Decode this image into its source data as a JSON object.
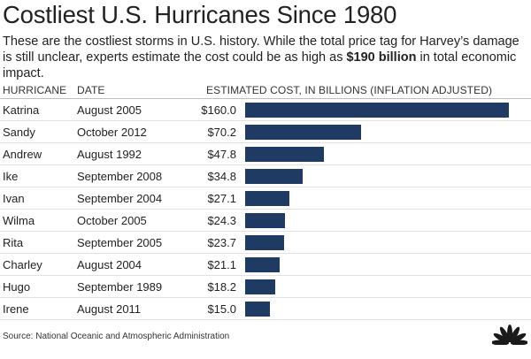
{
  "title": "Costliest U.S. Hurricanes Since 1980",
  "subtitle": {
    "text_before": "These are the costliest storms in U.S. history. While the total price tag for Harvey’s damage is still unclear, experts estimate the cost could be as high as ",
    "highlight": "$190 billion",
    "text_after": " in total economic impact."
  },
  "columns": {
    "hurricane": "HURRICANE",
    "date": "DATE",
    "cost": "ESTIMATED COST, IN BILLIONS (INFLATION ADJUSTED)"
  },
  "rows": [
    {
      "name": "Katrina",
      "date": "August 2005",
      "value_label": "$160.0"
    },
    {
      "name": "Sandy",
      "date": "October 2012",
      "value_label": "$70.2"
    },
    {
      "name": "Andrew",
      "date": "August 1992",
      "value_label": "$47.8"
    },
    {
      "name": "Ike",
      "date": "September 2008",
      "value_label": "$34.8"
    },
    {
      "name": "Ivan",
      "date": "September 2004",
      "value_label": "$27.1"
    },
    {
      "name": "Wilma",
      "date": "October 2005",
      "value_label": "$24.3"
    },
    {
      "name": "Rita",
      "date": "September 2005",
      "value_label": "$23.7"
    },
    {
      "name": "Charley",
      "date": "August 2004",
      "value_label": "$21.1"
    },
    {
      "name": "Hugo",
      "date": "September 1989",
      "value_label": "$18.2"
    },
    {
      "name": "Irene",
      "date": "August 2011",
      "value_label": "$15.0"
    }
  ],
  "source": "Source: National Oceanic and Atmospheric Administration",
  "logo_icon": "nbc-peacock-icon",
  "colors": {
    "bar": "#1f3a63",
    "text": "#222222"
  },
  "chart_data": {
    "type": "bar",
    "orientation": "horizontal",
    "title": "Costliest U.S. Hurricanes Since 1980",
    "categories": [
      "Katrina",
      "Sandy",
      "Andrew",
      "Ike",
      "Ivan",
      "Wilma",
      "Rita",
      "Charley",
      "Hugo",
      "Irene"
    ],
    "values": [
      160.0,
      70.2,
      47.8,
      34.8,
      27.1,
      24.3,
      23.7,
      21.1,
      18.2,
      15.0
    ],
    "xlabel": "ESTIMATED COST, IN BILLIONS (INFLATION ADJUSTED)",
    "ylabel": "HURRICANE",
    "xlim": [
      0,
      160
    ],
    "grid": false,
    "legend": "none"
  }
}
